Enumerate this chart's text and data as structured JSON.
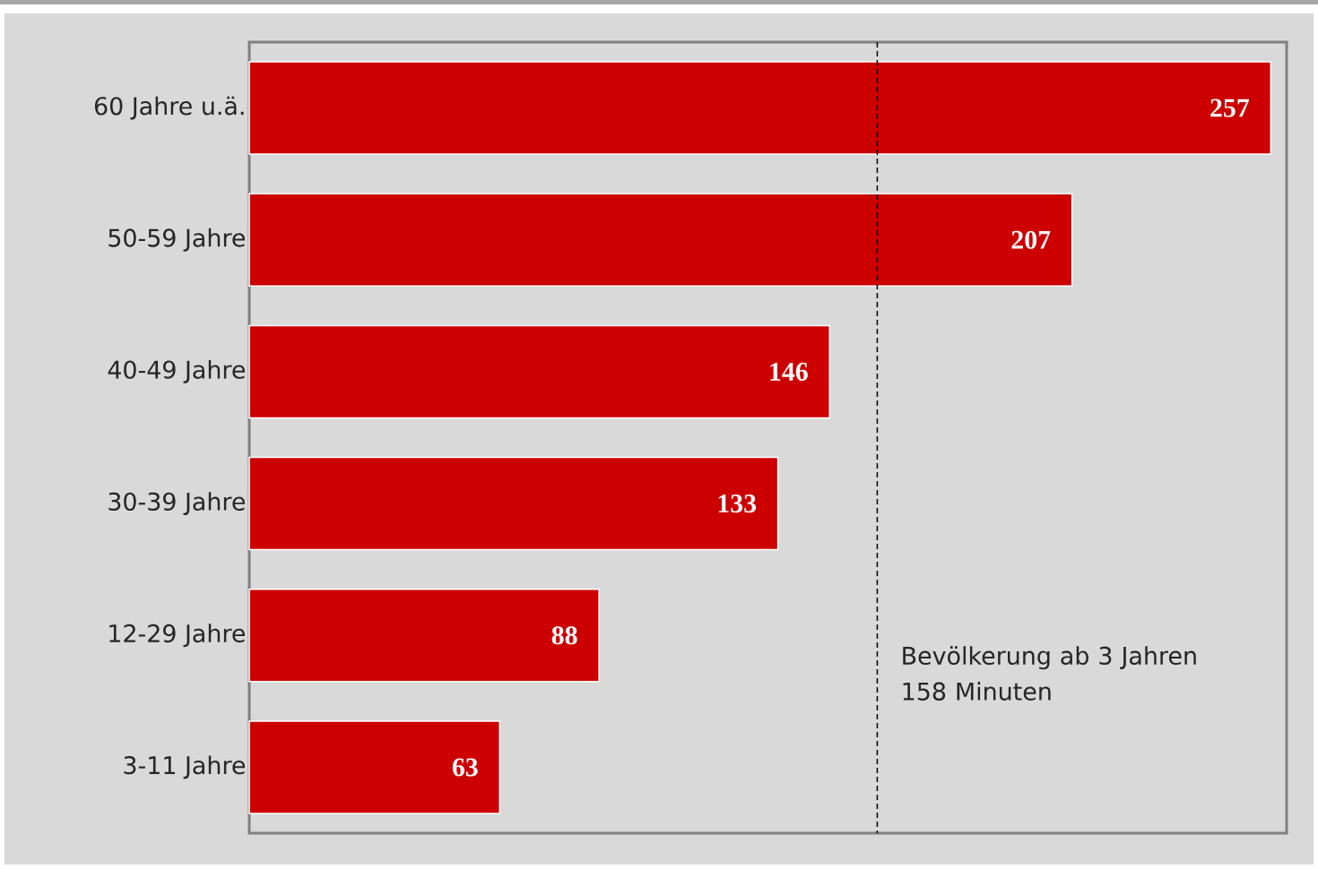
{
  "chart_data": {
    "type": "bar",
    "orientation": "horizontal",
    "categories": [
      "60 Jahre u.ä.",
      "50-59 Jahre",
      "40-49 Jahre",
      "30-39 Jahre",
      "12-29 Jahre",
      "3-11 Jahre"
    ],
    "values": [
      257,
      207,
      146,
      133,
      88,
      63
    ],
    "color": "#cc0000",
    "xlim": [
      0,
      261
    ],
    "tick_labels": "y",
    "data_labels": true,
    "ref_lines": [
      {
        "axis": "x",
        "value": 158,
        "label": "Bevölkerung ab 3 Jahren 158 Minuten",
        "line_style": "dashed",
        "color": "#000000"
      }
    ]
  }
}
